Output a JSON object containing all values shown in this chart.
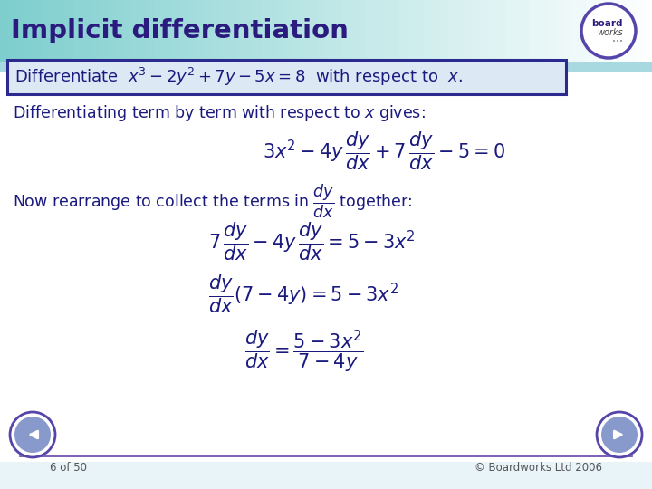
{
  "title": "Implicit differentiation",
  "title_color": "#2B1B7F",
  "header_bg_left": "#7ECECE",
  "header_bg_right": "#FFFFFF",
  "slide_bg": "#E8F4F8",
  "box_border": "#2B2B8F",
  "box_bg": "#DDE8F5",
  "text_color": "#1A1A7E",
  "math_color": "#1A1A7E",
  "footer_line_color": "#6644AA",
  "footer_text_color": "#555555",
  "footer_left": "6 of 50",
  "footer_right": "© Boardworks Ltd 2006",
  "arrow_fill": "#8899CC",
  "arrow_border": "#5544AA"
}
